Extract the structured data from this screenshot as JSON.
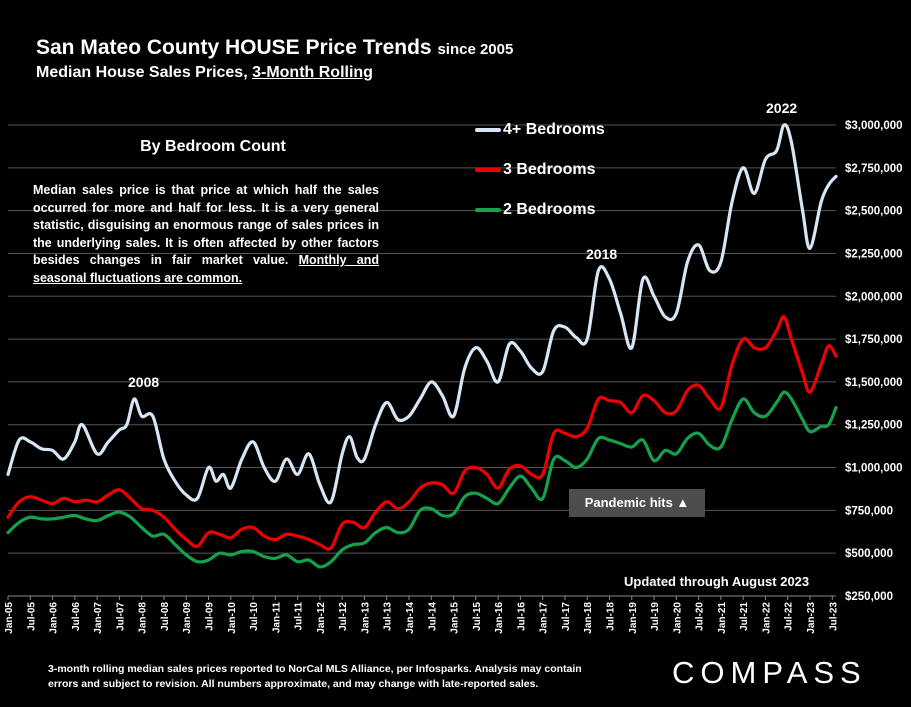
{
  "header": {
    "title_main": "San Mateo County HOUSE Price Trends",
    "title_since": "since 2005",
    "subtitle_main": "Median House Sales Prices, ",
    "subtitle_underlined": "3-Month Rolling"
  },
  "note": {
    "heading": "By Bedroom Count",
    "body_main": "Median sales price is that price at which half the sales occurred for more and half for less. It is a very general statistic, disguising an enormous range of sales prices in the underlying sales. It is often affected by other factors besides changes in fair market value. ",
    "body_underlined": "Monthly and seasonal fluctuations are common."
  },
  "annotations": {
    "year_2008": "2008",
    "year_2018": "2018",
    "year_2022": "2022",
    "pandemic": "Pandemic hits ▲",
    "updated": "Updated through August 2023"
  },
  "footnote": {
    "line1": "3-month rolling median sales prices reported to NorCal MLS Alliance, per Infosparks.  Analysis may contain",
    "line2": "errors and subject to revision. All numbers approximate, and may change with late-reported sales."
  },
  "logo": "COMPASS",
  "colors": {
    "four_plus": "#d6e6f5",
    "three": "#ee0000",
    "two": "#14a24a",
    "grid": "#555555"
  },
  "chart_data": {
    "type": "line",
    "x_start": "Jan-05",
    "x_end": "Aug-23",
    "x_tick_labels": [
      "Jan-05",
      "Jul-05",
      "Jan-06",
      "Jul-06",
      "Jan-07",
      "Jul-07",
      "Jan-08",
      "Jul-08",
      "Jan-09",
      "Jul-09",
      "Jan-10",
      "Jul-10",
      "Jan-11",
      "Jul-11",
      "Jan-12",
      "Jul-12",
      "Jan-13",
      "Jul-13",
      "Jan-14",
      "Jul-14",
      "Jan-15",
      "Jul-15",
      "Jan-16",
      "Jul-16",
      "Jan-17",
      "Jul-17",
      "Jan-18",
      "Jul-18",
      "Jan-19",
      "Jul-19",
      "Jan-20",
      "Jul-20",
      "Jan-21",
      "Jul-21",
      "Jan-22",
      "Jul-22",
      "Jan-23",
      "Jul-23"
    ],
    "y_tick_labels": [
      "$250,000",
      "$500,000",
      "$750,000",
      "$1,000,000",
      "$1,250,000",
      "$1,500,000",
      "$1,750,000",
      "$2,000,000",
      "$2,250,000",
      "$2,500,000",
      "$2,750,000",
      "$3,000,000"
    ],
    "ylim": [
      250000,
      3000000
    ],
    "grid": true,
    "legend_position": "top-center",
    "series": [
      {
        "name": "4+ Bedrooms",
        "color_key": "four_plus",
        "points": [
          [
            "Jan-05",
            960000
          ],
          [
            "Apr-05",
            1160000
          ],
          [
            "Jul-05",
            1150000
          ],
          [
            "Oct-05",
            1110000
          ],
          [
            "Jan-06",
            1100000
          ],
          [
            "Apr-06",
            1050000
          ],
          [
            "Jul-06",
            1150000
          ],
          [
            "Sep-06",
            1250000
          ],
          [
            "Jan-07",
            1080000
          ],
          [
            "Apr-07",
            1150000
          ],
          [
            "Jul-07",
            1220000
          ],
          [
            "Sep-07",
            1250000
          ],
          [
            "Nov-07",
            1400000
          ],
          [
            "Jan-08",
            1300000
          ],
          [
            "Apr-08",
            1300000
          ],
          [
            "Jul-08",
            1050000
          ],
          [
            "Oct-08",
            920000
          ],
          [
            "Jan-09",
            840000
          ],
          [
            "Apr-09",
            820000
          ],
          [
            "Jul-09",
            1000000
          ],
          [
            "Sep-09",
            920000
          ],
          [
            "Nov-09",
            960000
          ],
          [
            "Jan-10",
            880000
          ],
          [
            "Apr-10",
            1050000
          ],
          [
            "Jul-10",
            1150000
          ],
          [
            "Oct-10",
            1000000
          ],
          [
            "Jan-11",
            920000
          ],
          [
            "Apr-11",
            1050000
          ],
          [
            "Jul-11",
            960000
          ],
          [
            "Oct-11",
            1080000
          ],
          [
            "Jan-12",
            900000
          ],
          [
            "Apr-12",
            800000
          ],
          [
            "Jul-12",
            1080000
          ],
          [
            "Sep-12",
            1180000
          ],
          [
            "Nov-12",
            1060000
          ],
          [
            "Jan-13",
            1050000
          ],
          [
            "Apr-13",
            1250000
          ],
          [
            "Jul-13",
            1380000
          ],
          [
            "Oct-13",
            1280000
          ],
          [
            "Jan-14",
            1300000
          ],
          [
            "Apr-14",
            1400000
          ],
          [
            "Jul-14",
            1500000
          ],
          [
            "Oct-14",
            1420000
          ],
          [
            "Jan-15",
            1300000
          ],
          [
            "Apr-15",
            1580000
          ],
          [
            "Jul-15",
            1700000
          ],
          [
            "Oct-15",
            1620000
          ],
          [
            "Jan-16",
            1500000
          ],
          [
            "Apr-16",
            1720000
          ],
          [
            "Jul-16",
            1680000
          ],
          [
            "Oct-16",
            1580000
          ],
          [
            "Jan-17",
            1560000
          ],
          [
            "Apr-17",
            1800000
          ],
          [
            "Jul-17",
            1820000
          ],
          [
            "Oct-17",
            1760000
          ],
          [
            "Jan-18",
            1750000
          ],
          [
            "Apr-18",
            2150000
          ],
          [
            "Jul-18",
            2100000
          ],
          [
            "Oct-18",
            1900000
          ],
          [
            "Jan-19",
            1700000
          ],
          [
            "Apr-19",
            2100000
          ],
          [
            "Jul-19",
            2000000
          ],
          [
            "Oct-19",
            1880000
          ],
          [
            "Jan-20",
            1900000
          ],
          [
            "Apr-20",
            2200000
          ],
          [
            "Jul-20",
            2300000
          ],
          [
            "Oct-20",
            2150000
          ],
          [
            "Jan-21",
            2200000
          ],
          [
            "Apr-21",
            2550000
          ],
          [
            "Jul-21",
            2750000
          ],
          [
            "Oct-21",
            2600000
          ],
          [
            "Jan-22",
            2800000
          ],
          [
            "Apr-22",
            2850000
          ],
          [
            "Jun-22",
            3000000
          ],
          [
            "Aug-22",
            2900000
          ],
          [
            "Nov-22",
            2500000
          ],
          [
            "Jan-23",
            2280000
          ],
          [
            "Apr-23",
            2550000
          ],
          [
            "Jun-23",
            2650000
          ],
          [
            "Aug-23",
            2700000
          ]
        ]
      },
      {
        "name": "3 Bedrooms",
        "color_key": "three",
        "points": [
          [
            "Jan-05",
            710000
          ],
          [
            "Apr-05",
            800000
          ],
          [
            "Jul-05",
            830000
          ],
          [
            "Oct-05",
            810000
          ],
          [
            "Jan-06",
            790000
          ],
          [
            "Apr-06",
            820000
          ],
          [
            "Jul-06",
            800000
          ],
          [
            "Oct-06",
            810000
          ],
          [
            "Jan-07",
            800000
          ],
          [
            "Apr-07",
            840000
          ],
          [
            "Jul-07",
            870000
          ],
          [
            "Oct-07",
            820000
          ],
          [
            "Jan-08",
            760000
          ],
          [
            "Apr-08",
            750000
          ],
          [
            "Jul-08",
            710000
          ],
          [
            "Oct-08",
            640000
          ],
          [
            "Jan-09",
            580000
          ],
          [
            "Apr-09",
            540000
          ],
          [
            "Jul-09",
            620000
          ],
          [
            "Oct-09",
            610000
          ],
          [
            "Jan-10",
            590000
          ],
          [
            "Apr-10",
            640000
          ],
          [
            "Jul-10",
            650000
          ],
          [
            "Oct-10",
            600000
          ],
          [
            "Jan-11",
            580000
          ],
          [
            "Apr-11",
            610000
          ],
          [
            "Jul-11",
            600000
          ],
          [
            "Oct-11",
            580000
          ],
          [
            "Jan-12",
            550000
          ],
          [
            "Apr-12",
            530000
          ],
          [
            "Jul-12",
            670000
          ],
          [
            "Oct-12",
            680000
          ],
          [
            "Jan-13",
            650000
          ],
          [
            "Apr-13",
            740000
          ],
          [
            "Jul-13",
            800000
          ],
          [
            "Oct-13",
            760000
          ],
          [
            "Jan-14",
            800000
          ],
          [
            "Apr-14",
            880000
          ],
          [
            "Jul-14",
            910000
          ],
          [
            "Oct-14",
            900000
          ],
          [
            "Jan-15",
            850000
          ],
          [
            "Apr-15",
            980000
          ],
          [
            "Jul-15",
            1000000
          ],
          [
            "Oct-15",
            960000
          ],
          [
            "Jan-16",
            880000
          ],
          [
            "Apr-16",
            990000
          ],
          [
            "Jul-16",
            1010000
          ],
          [
            "Oct-16",
            960000
          ],
          [
            "Jan-17",
            960000
          ],
          [
            "Apr-17",
            1200000
          ],
          [
            "Jul-17",
            1200000
          ],
          [
            "Oct-17",
            1180000
          ],
          [
            "Jan-18",
            1230000
          ],
          [
            "Apr-18",
            1400000
          ],
          [
            "Jul-18",
            1390000
          ],
          [
            "Oct-18",
            1380000
          ],
          [
            "Jan-19",
            1320000
          ],
          [
            "Apr-19",
            1420000
          ],
          [
            "Jul-19",
            1390000
          ],
          [
            "Oct-19",
            1320000
          ],
          [
            "Jan-20",
            1330000
          ],
          [
            "Apr-20",
            1450000
          ],
          [
            "Jul-20",
            1480000
          ],
          [
            "Oct-20",
            1400000
          ],
          [
            "Jan-21",
            1350000
          ],
          [
            "Apr-21",
            1600000
          ],
          [
            "Jul-21",
            1750000
          ],
          [
            "Oct-21",
            1700000
          ],
          [
            "Jan-22",
            1700000
          ],
          [
            "Apr-22",
            1800000
          ],
          [
            "Jun-22",
            1880000
          ],
          [
            "Aug-22",
            1750000
          ],
          [
            "Nov-22",
            1550000
          ],
          [
            "Jan-23",
            1440000
          ],
          [
            "Apr-23",
            1600000
          ],
          [
            "Jun-23",
            1710000
          ],
          [
            "Aug-23",
            1650000
          ]
        ]
      },
      {
        "name": "2 Bedrooms",
        "color_key": "two",
        "points": [
          [
            "Jan-05",
            620000
          ],
          [
            "Apr-05",
            680000
          ],
          [
            "Jul-05",
            710000
          ],
          [
            "Oct-05",
            700000
          ],
          [
            "Jan-06",
            700000
          ],
          [
            "Apr-06",
            710000
          ],
          [
            "Jul-06",
            720000
          ],
          [
            "Oct-06",
            700000
          ],
          [
            "Jan-07",
            690000
          ],
          [
            "Apr-07",
            720000
          ],
          [
            "Jul-07",
            740000
          ],
          [
            "Oct-07",
            710000
          ],
          [
            "Jan-08",
            650000
          ],
          [
            "Apr-08",
            600000
          ],
          [
            "Jul-08",
            610000
          ],
          [
            "Oct-08",
            550000
          ],
          [
            "Jan-09",
            490000
          ],
          [
            "Apr-09",
            450000
          ],
          [
            "Jul-09",
            460000
          ],
          [
            "Oct-09",
            500000
          ],
          [
            "Jan-10",
            490000
          ],
          [
            "Apr-10",
            510000
          ],
          [
            "Jul-10",
            510000
          ],
          [
            "Oct-10",
            480000
          ],
          [
            "Jan-11",
            470000
          ],
          [
            "Apr-11",
            490000
          ],
          [
            "Jul-11",
            450000
          ],
          [
            "Oct-11",
            460000
          ],
          [
            "Jan-12",
            420000
          ],
          [
            "Apr-12",
            450000
          ],
          [
            "Jul-12",
            520000
          ],
          [
            "Oct-12",
            550000
          ],
          [
            "Jan-13",
            560000
          ],
          [
            "Apr-13",
            620000
          ],
          [
            "Jul-13",
            650000
          ],
          [
            "Oct-13",
            620000
          ],
          [
            "Jan-14",
            640000
          ],
          [
            "Apr-14",
            750000
          ],
          [
            "Jul-14",
            760000
          ],
          [
            "Oct-14",
            720000
          ],
          [
            "Jan-15",
            730000
          ],
          [
            "Apr-15",
            830000
          ],
          [
            "Jul-15",
            850000
          ],
          [
            "Oct-15",
            820000
          ],
          [
            "Jan-16",
            790000
          ],
          [
            "Apr-16",
            880000
          ],
          [
            "Jul-16",
            950000
          ],
          [
            "Oct-16",
            880000
          ],
          [
            "Jan-17",
            820000
          ],
          [
            "Apr-17",
            1050000
          ],
          [
            "Jul-17",
            1040000
          ],
          [
            "Oct-17",
            1000000
          ],
          [
            "Jan-18",
            1050000
          ],
          [
            "Apr-18",
            1170000
          ],
          [
            "Jul-18",
            1160000
          ],
          [
            "Oct-18",
            1140000
          ],
          [
            "Jan-19",
            1120000
          ],
          [
            "Apr-19",
            1160000
          ],
          [
            "Jul-19",
            1040000
          ],
          [
            "Oct-19",
            1100000
          ],
          [
            "Jan-20",
            1080000
          ],
          [
            "Apr-20",
            1170000
          ],
          [
            "Jul-20",
            1200000
          ],
          [
            "Oct-20",
            1130000
          ],
          [
            "Jan-21",
            1120000
          ],
          [
            "Apr-21",
            1280000
          ],
          [
            "Jul-21",
            1400000
          ],
          [
            "Oct-21",
            1320000
          ],
          [
            "Jan-22",
            1300000
          ],
          [
            "Apr-22",
            1380000
          ],
          [
            "Jun-22",
            1440000
          ],
          [
            "Aug-22",
            1400000
          ],
          [
            "Nov-22",
            1280000
          ],
          [
            "Jan-23",
            1210000
          ],
          [
            "Apr-23",
            1240000
          ],
          [
            "Jun-23",
            1250000
          ],
          [
            "Aug-23",
            1350000
          ]
        ]
      }
    ]
  }
}
